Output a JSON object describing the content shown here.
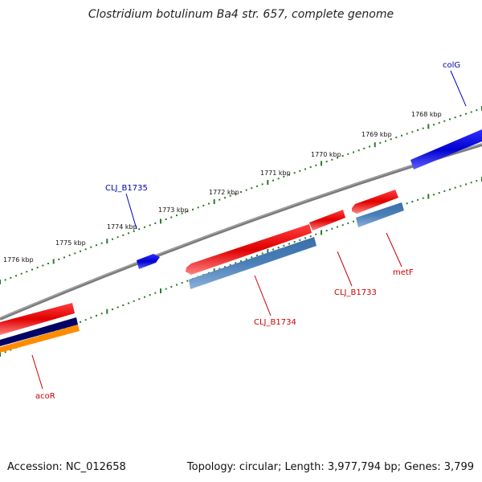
{
  "title": "Clostridium botulinum Ba4 str. 657, complete genome",
  "footer": {
    "accession": "Accession: NC_012658",
    "summary": "Topology: circular; Length: 3,977,794 bp; Genes: 3,799"
  },
  "colors": {
    "forward_gene": "#0000e0",
    "reverse_gene": "#e00000",
    "cds": "#4a7fb8",
    "backbone": "#808080",
    "ticks": "#2a7a2a",
    "navy": "#000066",
    "orange": "#ff8c00"
  },
  "ticks": {
    "labels": [
      "1768 kbp",
      "1769 kbp",
      "1770 kbp",
      "1771 kbp",
      "1772 kbp",
      "1773 kbp",
      "1774 kbp",
      "1775 kbp",
      "1776 kbp"
    ]
  },
  "genes": {
    "colG": "colG",
    "CLJ_B1735": "CLJ_B1735",
    "CLJ_B1734": "CLJ_B1734",
    "CLJ_B1733": "CLJ_B1733",
    "metF": "metF",
    "acoR": "acoR"
  }
}
